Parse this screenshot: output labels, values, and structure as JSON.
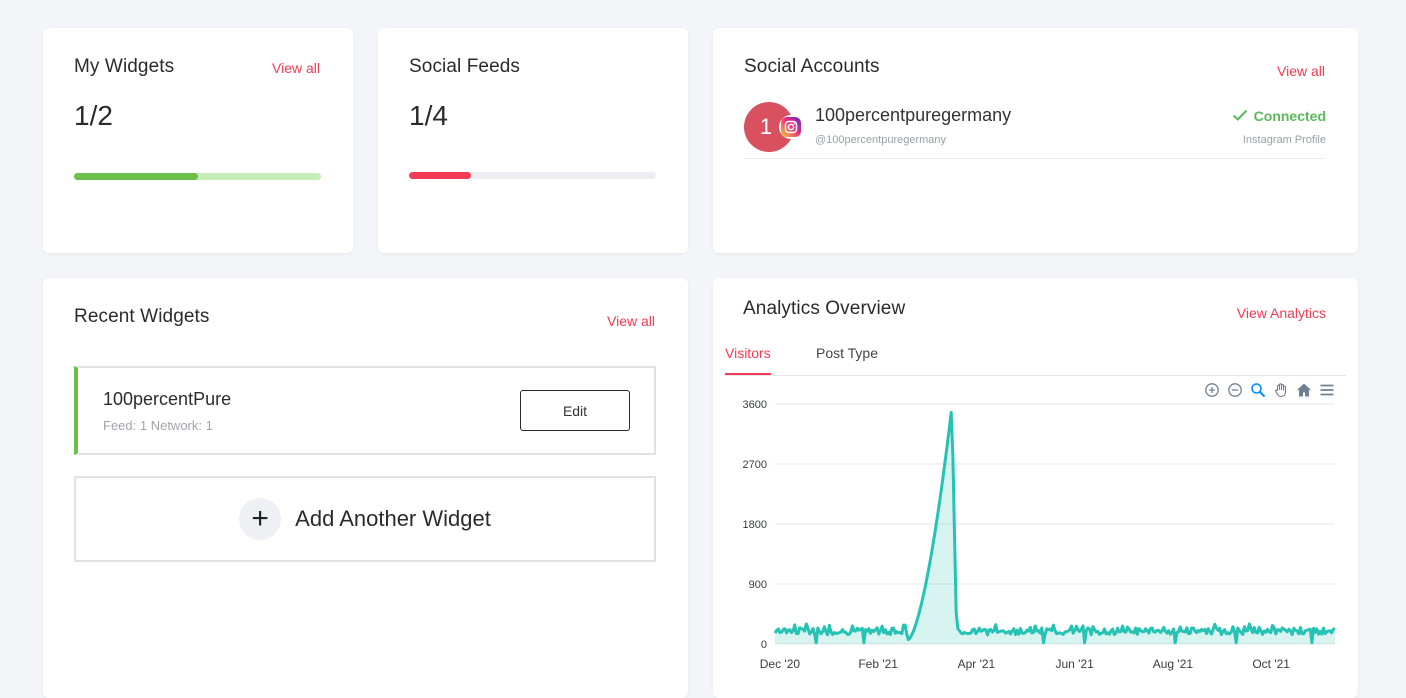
{
  "my_widgets": {
    "title": "My Widgets",
    "view_all": "View all",
    "count": "1/2",
    "progress": 0.5,
    "fill_color": "#6cc04a",
    "track_color": "#c6ecb8"
  },
  "social_feeds": {
    "title": "Social Feeds",
    "count": "1/4",
    "progress": 0.25,
    "fill_color": "#f23b54",
    "track_color": "#eceef2"
  },
  "social_accounts": {
    "title": "Social Accounts",
    "view_all": "View all",
    "account": {
      "avatar_letter": "1",
      "name": "100percentpuregermany",
      "handle": "@100percentpuregermany",
      "status": "Connected",
      "type": "Instagram Profile"
    }
  },
  "recent_widgets": {
    "title": "Recent Widgets",
    "view_all": "View all",
    "widget": {
      "name": "100percentPure",
      "meta": "Feed: 1 Network: 1",
      "edit_label": "Edit"
    },
    "add_label": "Add Another Widget",
    "add_symbol": "+"
  },
  "analytics": {
    "title": "Analytics Overview",
    "view_link": "View Analytics",
    "tabs": [
      "Visitors",
      "Post Type"
    ],
    "toolbar_icons": [
      "zoom-in-icon",
      "zoom-out-icon",
      "selection-zoom-icon",
      "pan-icon",
      "home-icon",
      "menu-icon"
    ]
  },
  "chart_data": {
    "type": "area",
    "series": [
      {
        "name": "Visitors",
        "color": "#26c2b4"
      }
    ],
    "ylim": [
      0,
      3600
    ],
    "yticks": [
      0,
      900,
      1800,
      2700,
      3600
    ],
    "xticks": [
      "Dec '20",
      "Feb '21",
      "Apr '21",
      "Jun '21",
      "Aug '21",
      "Oct '21"
    ],
    "x_range_months": [
      -0.1,
      11.3
    ],
    "baseline_range": [
      60,
      300
    ],
    "spike": {
      "start_month": 2.6,
      "peak_month": 3.5,
      "end_month": 3.6,
      "peak": 3550
    },
    "grid": true
  }
}
